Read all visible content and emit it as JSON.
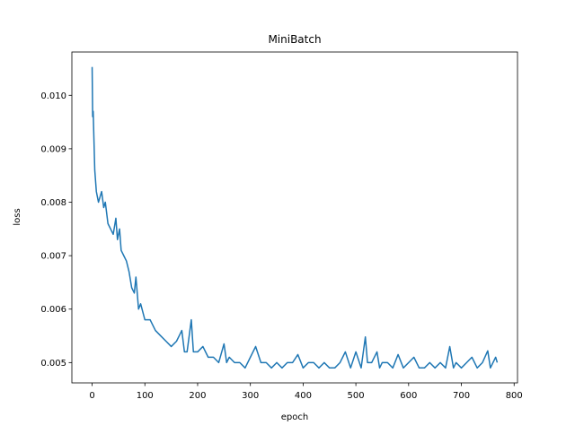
{
  "chart_data": {
    "type": "line",
    "title": "MiniBatch",
    "x_label": "epoch",
    "y_label": "loss",
    "x": [
      0,
      1,
      2,
      5,
      8,
      12,
      15,
      18,
      22,
      25,
      30,
      35,
      40,
      45,
      48,
      52,
      55,
      60,
      65,
      70,
      75,
      80,
      83,
      88,
      92,
      100,
      110,
      120,
      130,
      140,
      150,
      160,
      165,
      170,
      175,
      180,
      188,
      192,
      200,
      210,
      220,
      230,
      240,
      250,
      255,
      260,
      270,
      280,
      290,
      300,
      310,
      320,
      330,
      340,
      350,
      360,
      370,
      380,
      390,
      400,
      410,
      420,
      430,
      440,
      450,
      460,
      470,
      480,
      490,
      500,
      510,
      518,
      522,
      530,
      540,
      545,
      550,
      560,
      570,
      580,
      590,
      600,
      610,
      620,
      630,
      640,
      650,
      660,
      670,
      678,
      685,
      690,
      700,
      710,
      720,
      730,
      740,
      750,
      755,
      765,
      768
    ],
    "series": [
      {
        "name": "loss",
        "color": "#1f77b4",
        "values": [
          0.01053,
          0.0096,
          0.0097,
          0.0086,
          0.0082,
          0.008,
          0.0081,
          0.0082,
          0.0079,
          0.008,
          0.0076,
          0.0075,
          0.0074,
          0.0077,
          0.0073,
          0.0075,
          0.0071,
          0.007,
          0.0069,
          0.0067,
          0.0064,
          0.0063,
          0.0066,
          0.006,
          0.0061,
          0.0058,
          0.0058,
          0.0056,
          0.0055,
          0.0054,
          0.0053,
          0.0054,
          0.0055,
          0.0056,
          0.0052,
          0.0052,
          0.0058,
          0.0052,
          0.0052,
          0.0053,
          0.0051,
          0.0051,
          0.005,
          0.00535,
          0.005,
          0.0051,
          0.005,
          0.005,
          0.0049,
          0.0051,
          0.0053,
          0.005,
          0.005,
          0.0049,
          0.005,
          0.0049,
          0.005,
          0.005,
          0.00515,
          0.0049,
          0.005,
          0.005,
          0.0049,
          0.005,
          0.0049,
          0.0049,
          0.005,
          0.0052,
          0.0049,
          0.0052,
          0.0049,
          0.00548,
          0.005,
          0.005,
          0.0052,
          0.0049,
          0.005,
          0.005,
          0.0049,
          0.00515,
          0.0049,
          0.005,
          0.0051,
          0.0049,
          0.0049,
          0.005,
          0.0049,
          0.005,
          0.0049,
          0.0053,
          0.0049,
          0.005,
          0.0049,
          0.005,
          0.0051,
          0.0049,
          0.005,
          0.00522,
          0.0049,
          0.0051,
          0.005
        ]
      }
    ],
    "xlim": [
      -38.4,
      806.4
    ],
    "ylim": [
      0.00462,
      0.01081
    ],
    "xticks": [
      0,
      100,
      200,
      300,
      400,
      500,
      600,
      700,
      800
    ],
    "yticks": [
      0.005,
      0.006,
      0.007,
      0.008,
      0.009,
      {
        "value": 0.01,
        "label": "0.010"
      }
    ]
  }
}
